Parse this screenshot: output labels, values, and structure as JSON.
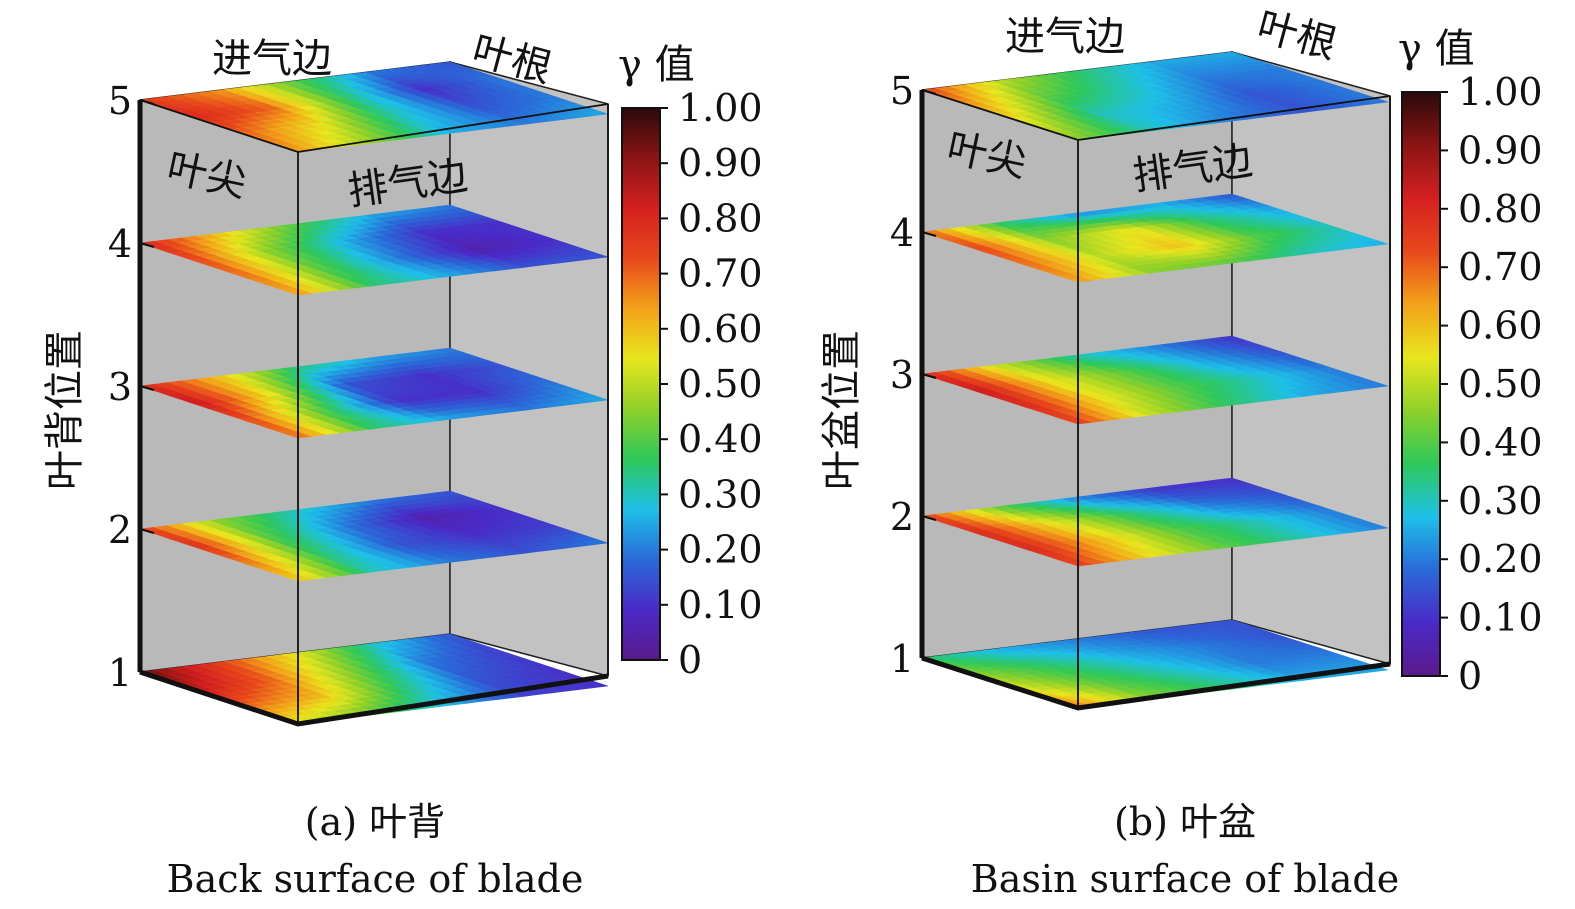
{
  "colorbar": {
    "title": "γ 值",
    "ticks": [
      "1.00",
      "0.90",
      "0.80",
      "0.70",
      "0.60",
      "0.50",
      "0.40",
      "0.30",
      "0.20",
      "0.10",
      "0"
    ],
    "stops": [
      "#2a0a0a",
      "#8b1414",
      "#d42020",
      "#e8481c",
      "#f2a21a",
      "#e8e61e",
      "#8fd02a",
      "#2ec85a",
      "#1ec0e8",
      "#2a6ad8",
      "#4a2ac8",
      "#5a1a8a"
    ]
  },
  "chart_data": [
    {
      "type": "heatmap",
      "panel": "a",
      "caption_cn": "(a) 叶背",
      "caption_en": "Back surface of blade",
      "ylabel": "叶背位置",
      "levels": [
        "1",
        "2",
        "3",
        "4",
        "5"
      ],
      "corner_labels": {
        "inlet_edge": "进气边",
        "root": "叶根",
        "tip": "叶尖",
        "outlet_edge": "排气边"
      },
      "value_range": [
        0,
        1.0
      ],
      "layers": [
        {
          "level": 1,
          "grid": [
            [
              0.95,
              0.75,
              0.55,
              0.3,
              0.15
            ],
            [
              0.85,
              0.7,
              0.45,
              0.2,
              0.12
            ],
            [
              0.7,
              0.6,
              0.35,
              0.15,
              0.1
            ],
            [
              0.55,
              0.4,
              0.25,
              0.12,
              0.1
            ]
          ]
        },
        {
          "level": 2,
          "grid": [
            [
              0.75,
              0.45,
              0.3,
              0.2,
              0.15
            ],
            [
              0.8,
              0.4,
              0.2,
              0.05,
              0.1
            ],
            [
              0.7,
              0.35,
              0.15,
              0.1,
              0.12
            ],
            [
              0.6,
              0.3,
              0.2,
              0.15,
              0.2
            ]
          ]
        },
        {
          "level": 3,
          "grid": [
            [
              0.8,
              0.6,
              0.35,
              0.25,
              0.2
            ],
            [
              0.85,
              0.55,
              0.15,
              0.1,
              0.15
            ],
            [
              0.75,
              0.4,
              0.1,
              0.1,
              0.2
            ],
            [
              0.7,
              0.35,
              0.25,
              0.2,
              0.25
            ]
          ]
        },
        {
          "level": 4,
          "grid": [
            [
              0.8,
              0.6,
              0.4,
              0.25,
              0.2
            ],
            [
              0.75,
              0.45,
              0.25,
              0.1,
              0.1
            ],
            [
              0.7,
              0.4,
              0.2,
              0.05,
              0.1
            ],
            [
              0.65,
              0.35,
              0.25,
              0.15,
              0.15
            ]
          ]
        },
        {
          "level": 5,
          "grid": [
            [
              0.75,
              0.65,
              0.4,
              0.2,
              0.15
            ],
            [
              0.8,
              0.7,
              0.35,
              0.1,
              0.2
            ],
            [
              0.7,
              0.55,
              0.3,
              0.15,
              0.2
            ],
            [
              0.65,
              0.45,
              0.25,
              0.2,
              0.25
            ]
          ]
        }
      ]
    },
    {
      "type": "heatmap",
      "panel": "b",
      "caption_cn": "(b) 叶盆",
      "caption_en": "Basin surface of blade",
      "ylabel": "叶盆位置",
      "levels": [
        "1",
        "2",
        "3",
        "4",
        "5"
      ],
      "corner_labels": {
        "inlet_edge": "进气边",
        "root": "叶根",
        "tip": "叶尖",
        "outlet_edge": "排气边"
      },
      "value_range": [
        0,
        1.0
      ],
      "layers": [
        {
          "level": 1,
          "grid": [
            [
              0.35,
              0.25,
              0.2,
              0.15,
              0.15
            ],
            [
              0.45,
              0.35,
              0.25,
              0.2,
              0.15
            ],
            [
              0.55,
              0.4,
              0.3,
              0.2,
              0.2
            ],
            [
              0.7,
              0.45,
              0.35,
              0.25,
              0.25
            ]
          ]
        },
        {
          "level": 2,
          "grid": [
            [
              0.75,
              0.4,
              0.2,
              0.1,
              0.1
            ],
            [
              0.8,
              0.55,
              0.35,
              0.2,
              0.15
            ],
            [
              0.8,
              0.6,
              0.4,
              0.3,
              0.2
            ],
            [
              0.75,
              0.55,
              0.4,
              0.3,
              0.2
            ]
          ]
        },
        {
          "level": 3,
          "grid": [
            [
              0.8,
              0.5,
              0.3,
              0.2,
              0.1
            ],
            [
              0.85,
              0.55,
              0.4,
              0.25,
              0.15
            ],
            [
              0.8,
              0.55,
              0.4,
              0.3,
              0.2
            ],
            [
              0.75,
              0.5,
              0.35,
              0.25,
              0.2
            ]
          ]
        },
        {
          "level": 4,
          "grid": [
            [
              0.7,
              0.35,
              0.2,
              0.25,
              0.15
            ],
            [
              0.75,
              0.45,
              0.55,
              0.35,
              0.25
            ],
            [
              0.7,
              0.5,
              0.6,
              0.4,
              0.3
            ],
            [
              0.65,
              0.45,
              0.4,
              0.3,
              0.25
            ]
          ]
        },
        {
          "level": 5,
          "grid": [
            [
              0.75,
              0.5,
              0.35,
              0.25,
              0.25
            ],
            [
              0.65,
              0.4,
              0.3,
              0.2,
              0.2
            ],
            [
              0.55,
              0.3,
              0.25,
              0.15,
              0.2
            ],
            [
              0.45,
              0.3,
              0.2,
              0.15,
              0.2
            ]
          ]
        }
      ]
    }
  ]
}
